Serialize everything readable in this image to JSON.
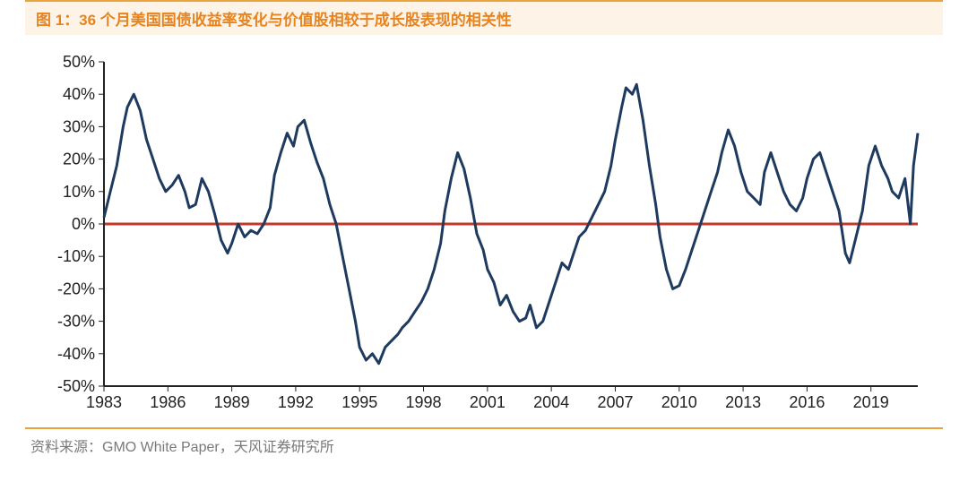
{
  "title": "图 1：36 个月美国国债收益率变化与价值股相较于成长股表现的相关性",
  "source": "资料来源：GMO White Paper，天风证券研究所",
  "chart": {
    "type": "line",
    "background_color": "#ffffff",
    "line_color": "#1f3a5f",
    "zero_line_color": "#c0392b",
    "axis_color": "#222222",
    "tick_font_size": 18,
    "line_width": 3,
    "x": {
      "min": 1983,
      "max": 2021.2,
      "ticks": [
        1983,
        1986,
        1989,
        1992,
        1995,
        1998,
        2001,
        2004,
        2007,
        2010,
        2013,
        2016,
        2019
      ],
      "tick_labels": [
        "1983",
        "1986",
        "1989",
        "1992",
        "1995",
        "1998",
        "2001",
        "2004",
        "2007",
        "2010",
        "2013",
        "2016",
        "2019"
      ]
    },
    "y": {
      "min": -50,
      "max": 50,
      "ticks": [
        -50,
        -40,
        -30,
        -20,
        -10,
        0,
        10,
        20,
        30,
        40,
        50
      ],
      "tick_labels": [
        "-50%",
        "-40%",
        "-30%",
        "-20%",
        "-10%",
        "0%",
        "10%",
        "20%",
        "30%",
        "40%",
        "50%"
      ]
    },
    "series": [
      [
        1983.0,
        2
      ],
      [
        1983.3,
        10
      ],
      [
        1983.6,
        18
      ],
      [
        1983.9,
        30
      ],
      [
        1984.1,
        36
      ],
      [
        1984.4,
        40
      ],
      [
        1984.7,
        35
      ],
      [
        1985.0,
        26
      ],
      [
        1985.3,
        20
      ],
      [
        1985.6,
        14
      ],
      [
        1985.9,
        10
      ],
      [
        1986.2,
        12
      ],
      [
        1986.5,
        15
      ],
      [
        1986.8,
        10
      ],
      [
        1987.0,
        5
      ],
      [
        1987.3,
        6
      ],
      [
        1987.6,
        14
      ],
      [
        1987.9,
        10
      ],
      [
        1988.2,
        3
      ],
      [
        1988.5,
        -5
      ],
      [
        1988.8,
        -9
      ],
      [
        1989.0,
        -6
      ],
      [
        1989.3,
        0
      ],
      [
        1989.6,
        -4
      ],
      [
        1989.9,
        -2
      ],
      [
        1990.2,
        -3
      ],
      [
        1990.5,
        0
      ],
      [
        1990.8,
        5
      ],
      [
        1991.0,
        15
      ],
      [
        1991.3,
        22
      ],
      [
        1991.6,
        28
      ],
      [
        1991.9,
        24
      ],
      [
        1992.1,
        30
      ],
      [
        1992.4,
        32
      ],
      [
        1992.7,
        25
      ],
      [
        1993.0,
        19
      ],
      [
        1993.3,
        14
      ],
      [
        1993.6,
        6
      ],
      [
        1993.9,
        0
      ],
      [
        1994.2,
        -10
      ],
      [
        1994.5,
        -20
      ],
      [
        1994.8,
        -30
      ],
      [
        1995.0,
        -38
      ],
      [
        1995.3,
        -42
      ],
      [
        1995.6,
        -40
      ],
      [
        1995.9,
        -43
      ],
      [
        1996.2,
        -38
      ],
      [
        1996.5,
        -36
      ],
      [
        1996.8,
        -34
      ],
      [
        1997.0,
        -32
      ],
      [
        1997.3,
        -30
      ],
      [
        1997.6,
        -27
      ],
      [
        1997.9,
        -24
      ],
      [
        1998.2,
        -20
      ],
      [
        1998.5,
        -14
      ],
      [
        1998.8,
        -6
      ],
      [
        1999.0,
        4
      ],
      [
        1999.3,
        14
      ],
      [
        1999.6,
        22
      ],
      [
        1999.9,
        17
      ],
      [
        2000.2,
        8
      ],
      [
        2000.5,
        -3
      ],
      [
        2000.8,
        -8
      ],
      [
        2001.0,
        -14
      ],
      [
        2001.3,
        -18
      ],
      [
        2001.6,
        -25
      ],
      [
        2001.9,
        -22
      ],
      [
        2002.2,
        -27
      ],
      [
        2002.5,
        -30
      ],
      [
        2002.8,
        -29
      ],
      [
        2003.0,
        -25
      ],
      [
        2003.3,
        -32
      ],
      [
        2003.6,
        -30
      ],
      [
        2003.9,
        -24
      ],
      [
        2004.2,
        -18
      ],
      [
        2004.5,
        -12
      ],
      [
        2004.8,
        -14
      ],
      [
        2005.0,
        -10
      ],
      [
        2005.3,
        -4
      ],
      [
        2005.6,
        -2
      ],
      [
        2005.9,
        2
      ],
      [
        2006.2,
        6
      ],
      [
        2006.5,
        10
      ],
      [
        2006.8,
        18
      ],
      [
        2007.0,
        26
      ],
      [
        2007.3,
        36
      ],
      [
        2007.5,
        42
      ],
      [
        2007.8,
        40
      ],
      [
        2008.0,
        43
      ],
      [
        2008.3,
        32
      ],
      [
        2008.6,
        18
      ],
      [
        2008.9,
        6
      ],
      [
        2009.1,
        -4
      ],
      [
        2009.4,
        -14
      ],
      [
        2009.7,
        -20
      ],
      [
        2010.0,
        -19
      ],
      [
        2010.3,
        -14
      ],
      [
        2010.6,
        -8
      ],
      [
        2010.9,
        -2
      ],
      [
        2011.2,
        4
      ],
      [
        2011.5,
        10
      ],
      [
        2011.8,
        16
      ],
      [
        2012.0,
        22
      ],
      [
        2012.3,
        29
      ],
      [
        2012.6,
        24
      ],
      [
        2012.9,
        16
      ],
      [
        2013.2,
        10
      ],
      [
        2013.5,
        8
      ],
      [
        2013.8,
        6
      ],
      [
        2014.0,
        16
      ],
      [
        2014.3,
        22
      ],
      [
        2014.6,
        16
      ],
      [
        2014.9,
        10
      ],
      [
        2015.2,
        6
      ],
      [
        2015.5,
        4
      ],
      [
        2015.8,
        8
      ],
      [
        2016.0,
        14
      ],
      [
        2016.3,
        20
      ],
      [
        2016.6,
        22
      ],
      [
        2016.9,
        16
      ],
      [
        2017.2,
        10
      ],
      [
        2017.5,
        4
      ],
      [
        2017.8,
        -9
      ],
      [
        2018.0,
        -12
      ],
      [
        2018.3,
        -4
      ],
      [
        2018.6,
        4
      ],
      [
        2018.9,
        18
      ],
      [
        2019.2,
        24
      ],
      [
        2019.5,
        18
      ],
      [
        2019.8,
        14
      ],
      [
        2020.0,
        10
      ],
      [
        2020.3,
        8
      ],
      [
        2020.6,
        14
      ],
      [
        2020.85,
        0
      ],
      [
        2021.0,
        18
      ],
      [
        2021.2,
        28
      ]
    ]
  }
}
